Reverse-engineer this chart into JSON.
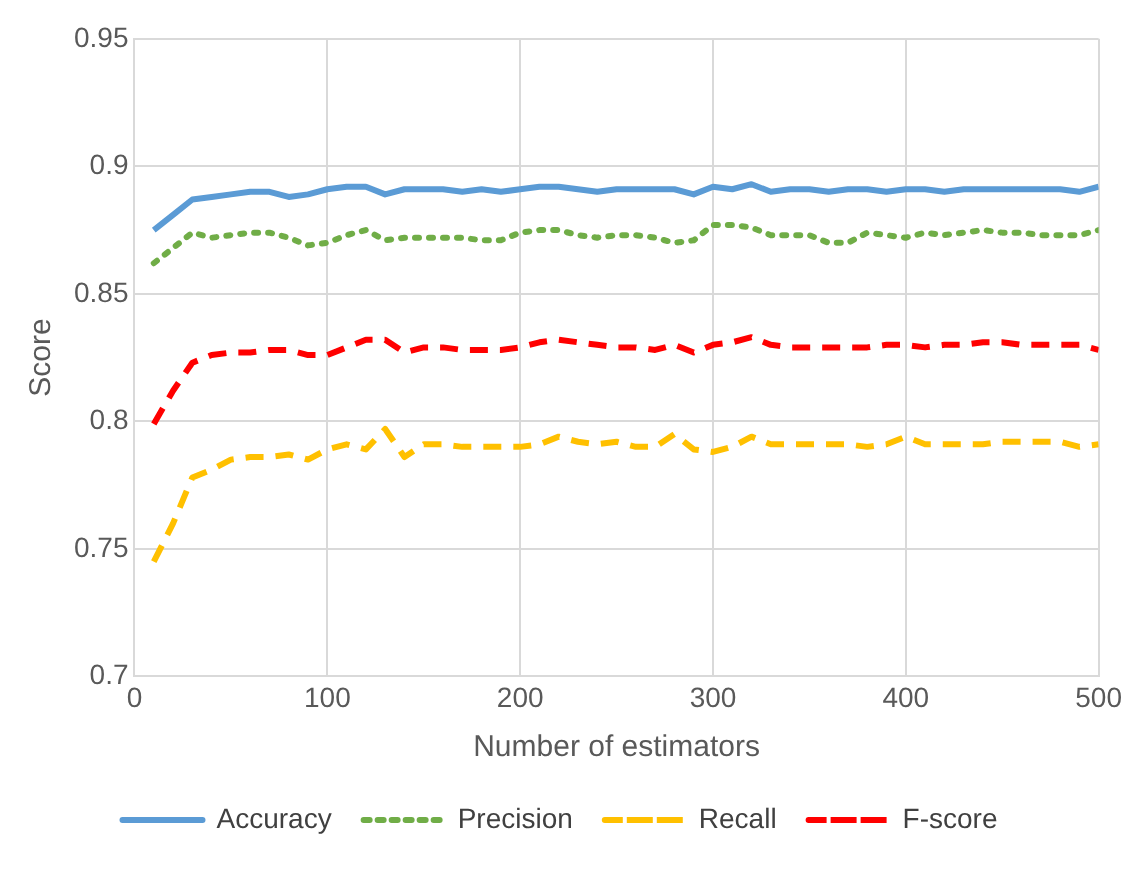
{
  "chart_data": {
    "type": "line",
    "xlabel": "Number of estimators",
    "ylabel": "Score",
    "x": [
      10,
      20,
      30,
      40,
      50,
      60,
      70,
      80,
      90,
      100,
      110,
      120,
      130,
      140,
      150,
      160,
      170,
      180,
      190,
      200,
      210,
      220,
      230,
      240,
      250,
      260,
      270,
      280,
      290,
      300,
      310,
      320,
      330,
      340,
      350,
      360,
      370,
      380,
      390,
      400,
      410,
      420,
      430,
      440,
      450,
      460,
      470,
      480,
      490,
      500
    ],
    "series": [
      {
        "name": "Accuracy",
        "color": "#5b9bd5",
        "line_style": "solid",
        "values": [
          0.875,
          0.881,
          0.887,
          0.888,
          0.889,
          0.89,
          0.89,
          0.888,
          0.889,
          0.891,
          0.892,
          0.892,
          0.889,
          0.891,
          0.891,
          0.891,
          0.89,
          0.891,
          0.89,
          0.891,
          0.892,
          0.892,
          0.891,
          0.89,
          0.891,
          0.891,
          0.891,
          0.891,
          0.889,
          0.892,
          0.891,
          0.893,
          0.89,
          0.891,
          0.891,
          0.89,
          0.891,
          0.891,
          0.89,
          0.891,
          0.891,
          0.89,
          0.891,
          0.891,
          0.891,
          0.891,
          0.891,
          0.891,
          0.89,
          0.892
        ]
      },
      {
        "name": "Precision",
        "color": "#70ad47",
        "line_style": "dotted",
        "values": [
          0.862,
          0.868,
          0.874,
          0.872,
          0.873,
          0.874,
          0.874,
          0.872,
          0.869,
          0.87,
          0.873,
          0.875,
          0.871,
          0.872,
          0.872,
          0.872,
          0.872,
          0.871,
          0.871,
          0.874,
          0.875,
          0.875,
          0.873,
          0.872,
          0.873,
          0.873,
          0.872,
          0.87,
          0.871,
          0.877,
          0.877,
          0.876,
          0.873,
          0.873,
          0.873,
          0.87,
          0.87,
          0.874,
          0.873,
          0.872,
          0.874,
          0.873,
          0.874,
          0.875,
          0.874,
          0.874,
          0.873,
          0.873,
          0.873,
          0.875
        ]
      },
      {
        "name": "Recall",
        "color": "#ffc000",
        "line_style": "dashed",
        "values": [
          0.745,
          0.76,
          0.778,
          0.781,
          0.785,
          0.786,
          0.786,
          0.787,
          0.785,
          0.789,
          0.791,
          0.789,
          0.797,
          0.786,
          0.791,
          0.791,
          0.79,
          0.79,
          0.79,
          0.79,
          0.791,
          0.794,
          0.792,
          0.791,
          0.792,
          0.79,
          0.79,
          0.795,
          0.789,
          0.788,
          0.79,
          0.794,
          0.791,
          0.791,
          0.791,
          0.791,
          0.791,
          0.79,
          0.791,
          0.794,
          0.791,
          0.791,
          0.791,
          0.791,
          0.792,
          0.792,
          0.792,
          0.792,
          0.79,
          0.791
        ]
      },
      {
        "name": "F-score",
        "color": "#ff0000",
        "line_style": "dashed",
        "values": [
          0.799,
          0.812,
          0.823,
          0.826,
          0.827,
          0.827,
          0.828,
          0.828,
          0.826,
          0.826,
          0.829,
          0.832,
          0.832,
          0.827,
          0.829,
          0.829,
          0.828,
          0.828,
          0.828,
          0.829,
          0.831,
          0.832,
          0.831,
          0.83,
          0.829,
          0.829,
          0.828,
          0.83,
          0.827,
          0.83,
          0.831,
          0.833,
          0.83,
          0.829,
          0.829,
          0.829,
          0.829,
          0.829,
          0.83,
          0.83,
          0.829,
          0.83,
          0.83,
          0.831,
          0.831,
          0.83,
          0.83,
          0.83,
          0.83,
          0.828
        ]
      }
    ],
    "xlim": [
      0,
      500
    ],
    "xticks": [
      0,
      100,
      200,
      300,
      400,
      500
    ],
    "ylim": [
      0.7,
      0.95
    ],
    "yticks": [
      0.7,
      0.75,
      0.8,
      0.85,
      0.9,
      0.95
    ],
    "grid": true,
    "legend": "bottom",
    "marker": "none"
  }
}
